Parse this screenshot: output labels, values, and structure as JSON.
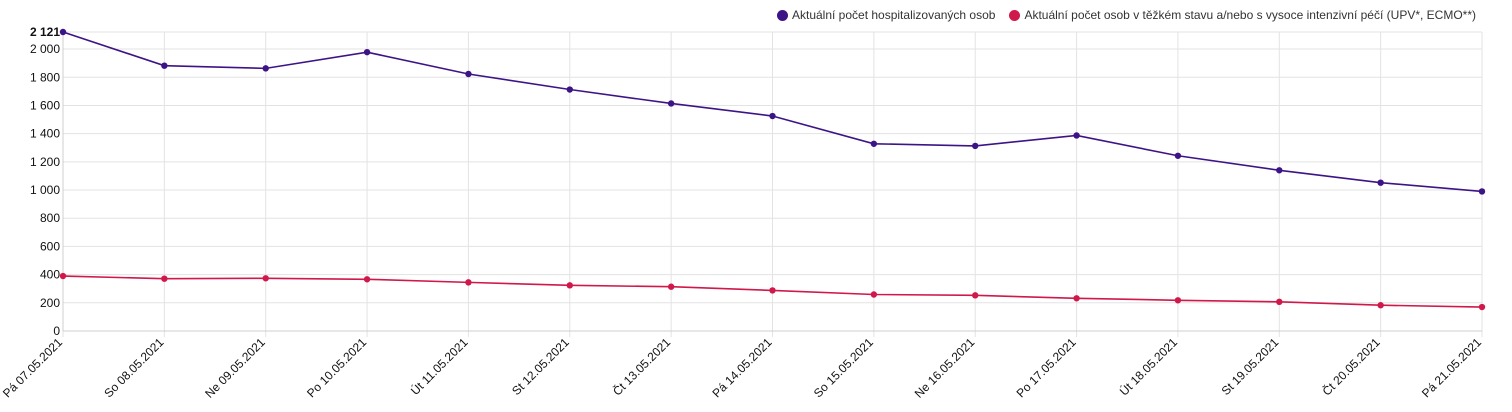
{
  "chart_data": {
    "type": "line",
    "categories": [
      "Pá 07.05.2021",
      "So 08.05.2021",
      "Ne 09.05.2021",
      "Po 10.05.2021",
      "Út 11.05.2021",
      "St 12.05.2021",
      "Čt 13.05.2021",
      "Pá 14.05.2021",
      "So 15.05.2021",
      "Ne 16.05.2021",
      "Po 17.05.2021",
      "Út 18.05.2021",
      "St 19.05.2021",
      "Čt 20.05.2021",
      "Pá 21.05.2021"
    ],
    "series": [
      {
        "name": "Aktuální počet hospitalizovaných osob",
        "color": "#3d1486",
        "values": [
          2121,
          1882,
          1863,
          1978,
          1823,
          1713,
          1614,
          1525,
          1328,
          1313,
          1387,
          1243,
          1140,
          1052,
          990
        ]
      },
      {
        "name": "Aktuální počet osob v těžkém stavu a/nebo s vysoce intenzivní péčí (UPV*, ECMO**)",
        "color": "#d1184a",
        "values": [
          390,
          371,
          374,
          367,
          345,
          324,
          314,
          288,
          259,
          253,
          232,
          218,
          207,
          183,
          170
        ]
      }
    ],
    "ylim": [
      0,
      2121
    ],
    "yticks": [
      "0",
      "200",
      "400",
      "600",
      "800",
      "1 000",
      "1 200",
      "1 400",
      "1 600",
      "1 800",
      "2 000"
    ],
    "ymax_label": "2 121",
    "grid": true,
    "legend_position": "top-right"
  }
}
